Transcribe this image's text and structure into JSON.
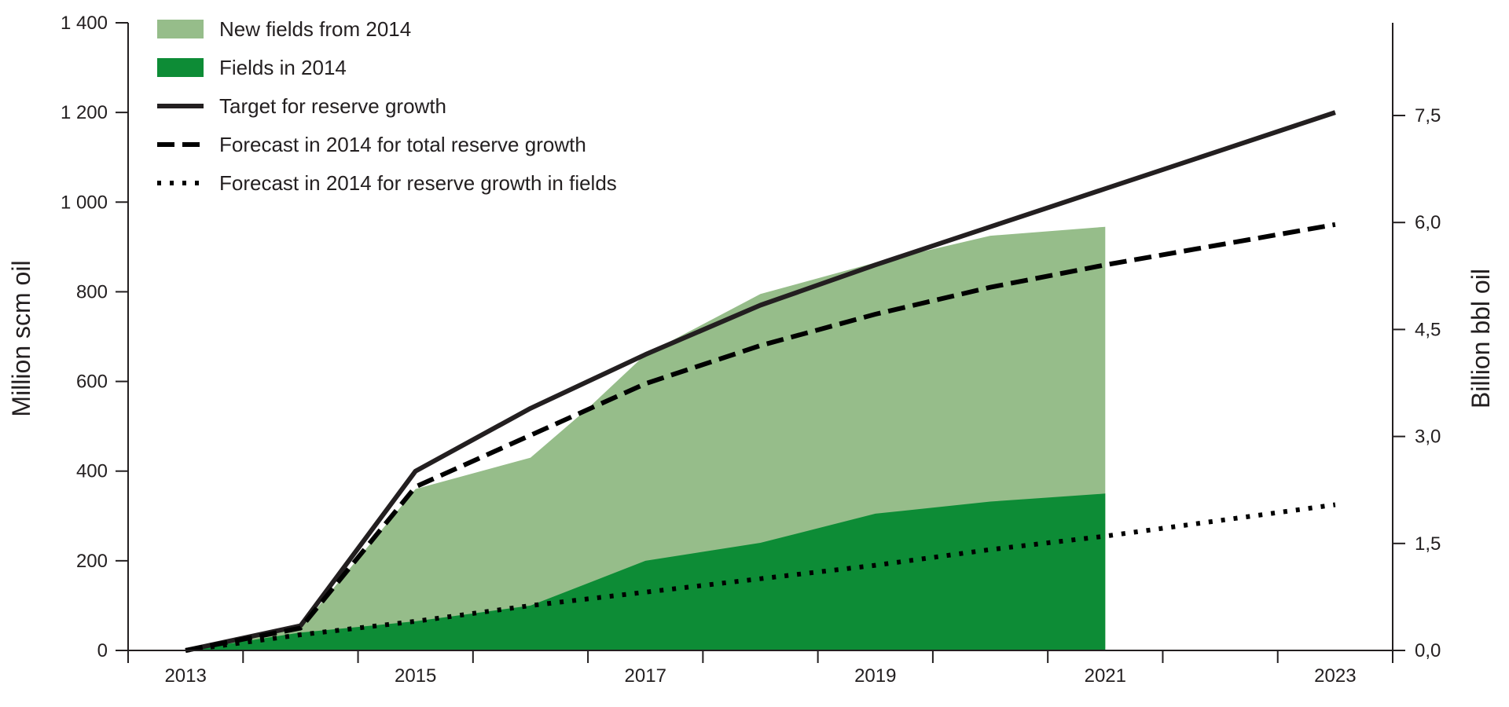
{
  "chart_data": {
    "type": "area",
    "x": [
      2013,
      2014,
      2015,
      2016,
      2017,
      2018,
      2019,
      2020,
      2021,
      2022,
      2023
    ],
    "x_ticks": [
      "2013",
      "2015",
      "2017",
      "2019",
      "2021",
      "2023"
    ],
    "ylabel_left": "Million scm oil",
    "ylabel_right": "Billion bbl oil",
    "ylim_left": [
      0,
      1400
    ],
    "y_ticks_left": [
      "0",
      "200",
      "400",
      "600",
      "800",
      "1 000",
      "1 200",
      "1 400"
    ],
    "ylim_right": [
      0,
      8.8
    ],
    "y_ticks_right": [
      "0,0",
      "1,5",
      "3,0",
      "4,5",
      "6,0",
      "7,5"
    ],
    "grid": false,
    "legend_position": "top-left",
    "series": [
      {
        "name": "New fields from 2014",
        "kind": "area",
        "color": "#96bd8a",
        "note_stacked_total": true,
        "x": [
          2013,
          2014,
          2015,
          2016,
          2016.5,
          2017,
          2018,
          2019,
          2020,
          2021
        ],
        "values": [
          0,
          50,
          360,
          430,
          540,
          660,
          795,
          865,
          925,
          945
        ]
      },
      {
        "name": "Fields in 2014",
        "kind": "area",
        "color": "#0d8c36",
        "x": [
          2013,
          2014,
          2015,
          2016,
          2017,
          2018,
          2019,
          2020,
          2021
        ],
        "values": [
          0,
          40,
          65,
          100,
          200,
          240,
          305,
          332,
          350
        ]
      },
      {
        "name": "Target for reserve growth",
        "kind": "line",
        "style": "solid",
        "color": "#231f20",
        "x": [
          2013,
          2014,
          2015,
          2016,
          2017,
          2018,
          2019,
          2020,
          2021,
          2022,
          2023
        ],
        "values": [
          0,
          55,
          400,
          540,
          660,
          770,
          860,
          945,
          1030,
          1115,
          1200
        ]
      },
      {
        "name": "Forecast in 2014 for total reserve growth",
        "kind": "line",
        "style": "dashed",
        "color": "#000000",
        "x": [
          2013,
          2014,
          2015,
          2016,
          2017,
          2018,
          2019,
          2020,
          2021,
          2022,
          2023
        ],
        "values": [
          0,
          50,
          365,
          480,
          595,
          680,
          750,
          810,
          860,
          905,
          950
        ]
      },
      {
        "name": "Forecast in 2014 for reserve growth in fields",
        "kind": "line",
        "style": "dotted",
        "color": "#000000",
        "x": [
          2013,
          2014,
          2015,
          2016,
          2017,
          2018,
          2019,
          2020,
          2021,
          2022,
          2023
        ],
        "values": [
          0,
          35,
          65,
          100,
          130,
          160,
          190,
          225,
          255,
          290,
          325
        ]
      }
    ]
  }
}
